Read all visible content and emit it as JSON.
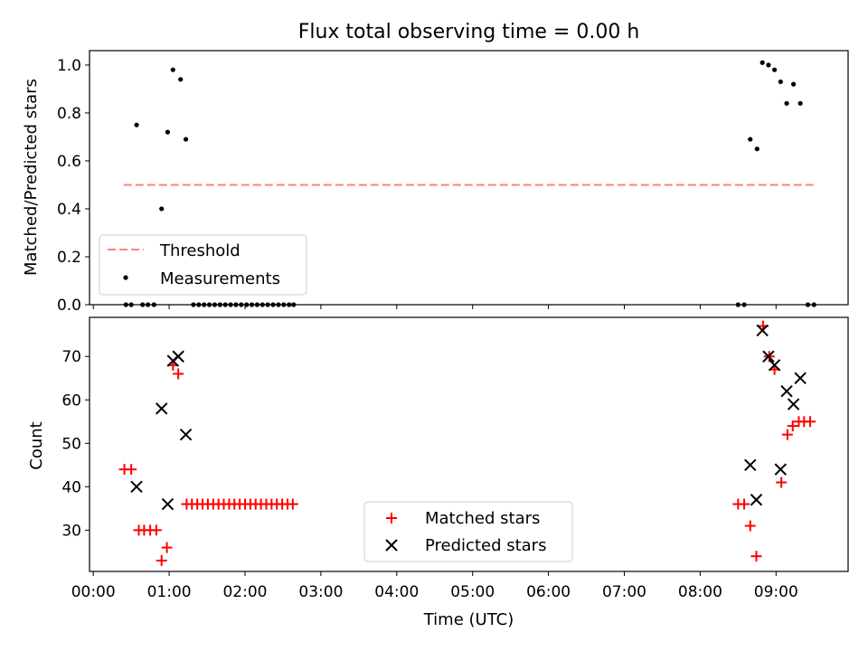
{
  "chart_data": [
    {
      "type": "scatter",
      "title": "Flux total observing time = 0.00 h",
      "xlabel": "",
      "ylabel": "Matched/Predicted stars",
      "xlim": [
        -0.05,
        9.95
      ],
      "ylim": [
        0.0,
        1.06
      ],
      "x_unit": "hours UTC",
      "y_ticks": [
        "0.0",
        "0.2",
        "0.4",
        "0.6",
        "0.8",
        "1.0"
      ],
      "y_tick_values": [
        0.0,
        0.2,
        0.4,
        0.6,
        0.8,
        1.0
      ],
      "legend_position": "lower-left",
      "threshold": {
        "name": "Threshold",
        "y": 0.5,
        "x_range": [
          0.4,
          9.5
        ],
        "color": "#ff7f7f",
        "style": "dashed"
      },
      "series": [
        {
          "name": "Measurements",
          "color": "#000000",
          "marker": "dot",
          "points": [
            [
              0.43,
              0.0
            ],
            [
              0.5,
              0.0
            ],
            [
              0.57,
              0.75
            ],
            [
              0.65,
              0.0
            ],
            [
              0.72,
              0.0
            ],
            [
              0.8,
              0.0
            ],
            [
              0.9,
              0.4
            ],
            [
              0.98,
              0.72
            ],
            [
              1.05,
              0.98
            ],
            [
              1.15,
              0.94
            ],
            [
              1.22,
              0.69
            ],
            [
              1.32,
              0.0
            ],
            [
              1.39,
              0.0
            ],
            [
              1.46,
              0.0
            ],
            [
              1.53,
              0.0
            ],
            [
              1.6,
              0.0
            ],
            [
              1.67,
              0.0
            ],
            [
              1.74,
              0.0
            ],
            [
              1.81,
              0.0
            ],
            [
              1.88,
              0.0
            ],
            [
              1.95,
              0.0
            ],
            [
              2.02,
              0.0
            ],
            [
              2.09,
              0.0
            ],
            [
              2.16,
              0.0
            ],
            [
              2.23,
              0.0
            ],
            [
              2.3,
              0.0
            ],
            [
              2.37,
              0.0
            ],
            [
              2.44,
              0.0
            ],
            [
              2.51,
              0.0
            ],
            [
              2.58,
              0.0
            ],
            [
              2.64,
              0.0
            ],
            [
              8.5,
              0.0
            ],
            [
              8.58,
              0.0
            ],
            [
              8.66,
              0.69
            ],
            [
              8.75,
              0.65
            ],
            [
              8.82,
              1.01
            ],
            [
              8.9,
              1.0
            ],
            [
              8.98,
              0.98
            ],
            [
              9.06,
              0.93
            ],
            [
              9.14,
              0.84
            ],
            [
              9.23,
              0.92
            ],
            [
              9.32,
              0.84
            ],
            [
              9.42,
              0.0
            ],
            [
              9.5,
              0.0
            ]
          ]
        }
      ]
    },
    {
      "type": "scatter",
      "title": "",
      "xlabel": "Time (UTC)",
      "ylabel": "Count",
      "xlim": [
        -0.05,
        9.95
      ],
      "ylim": [
        20.5,
        79
      ],
      "x_unit": "hours UTC",
      "x_ticks": [
        "00:00",
        "01:00",
        "02:00",
        "03:00",
        "04:00",
        "05:00",
        "06:00",
        "07:00",
        "08:00",
        "09:00"
      ],
      "x_tick_values": [
        0,
        1,
        2,
        3,
        4,
        5,
        6,
        7,
        8,
        9
      ],
      "y_ticks": [
        "30",
        "40",
        "50",
        "60",
        "70"
      ],
      "y_tick_values": [
        30,
        40,
        50,
        60,
        70
      ],
      "legend_position": "lower-center",
      "series": [
        {
          "name": "Matched stars",
          "color": "#ff0000",
          "marker": "plus",
          "points": [
            [
              0.41,
              44
            ],
            [
              0.5,
              44
            ],
            [
              0.6,
              30
            ],
            [
              0.67,
              30
            ],
            [
              0.75,
              30
            ],
            [
              0.83,
              30
            ],
            [
              0.9,
              23
            ],
            [
              0.97,
              26
            ],
            [
              1.05,
              68
            ],
            [
              1.12,
              66
            ],
            [
              1.23,
              36
            ],
            [
              1.3,
              36
            ],
            [
              1.37,
              36
            ],
            [
              1.44,
              36
            ],
            [
              1.51,
              36
            ],
            [
              1.58,
              36
            ],
            [
              1.65,
              36
            ],
            [
              1.72,
              36
            ],
            [
              1.79,
              36
            ],
            [
              1.86,
              36
            ],
            [
              1.93,
              36
            ],
            [
              2.0,
              36
            ],
            [
              2.07,
              36
            ],
            [
              2.14,
              36
            ],
            [
              2.21,
              36
            ],
            [
              2.28,
              36
            ],
            [
              2.35,
              36
            ],
            [
              2.42,
              36
            ],
            [
              2.49,
              36
            ],
            [
              2.56,
              36
            ],
            [
              2.63,
              36
            ],
            [
              8.5,
              36
            ],
            [
              8.58,
              36
            ],
            [
              8.66,
              31
            ],
            [
              8.74,
              24
            ],
            [
              8.83,
              77
            ],
            [
              8.91,
              70
            ],
            [
              8.98,
              67
            ],
            [
              9.07,
              41
            ],
            [
              9.15,
              52
            ],
            [
              9.22,
              54
            ],
            [
              9.3,
              55
            ],
            [
              9.37,
              55
            ],
            [
              9.45,
              55
            ]
          ]
        },
        {
          "name": "Predicted stars",
          "color": "#000000",
          "marker": "x",
          "points": [
            [
              0.57,
              40
            ],
            [
              0.9,
              58
            ],
            [
              0.98,
              36
            ],
            [
              1.05,
              69
            ],
            [
              1.12,
              70
            ],
            [
              1.22,
              52
            ],
            [
              8.66,
              45
            ],
            [
              8.74,
              37
            ],
            [
              8.82,
              76
            ],
            [
              8.9,
              70
            ],
            [
              8.98,
              68
            ],
            [
              9.06,
              44
            ],
            [
              9.14,
              62
            ],
            [
              9.23,
              59
            ],
            [
              9.32,
              65
            ]
          ]
        }
      ]
    }
  ]
}
